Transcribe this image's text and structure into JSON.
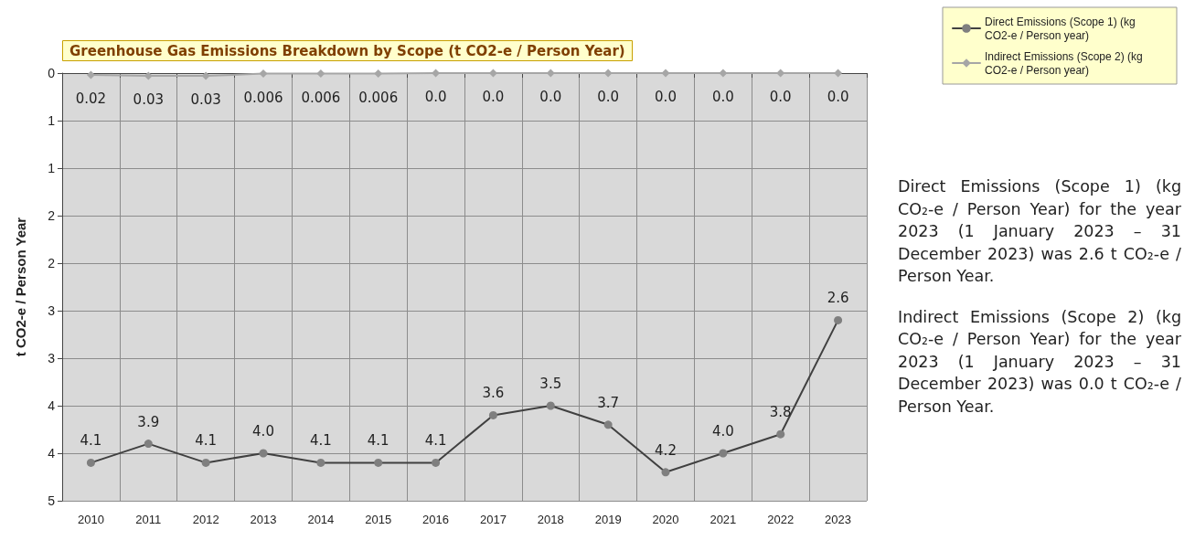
{
  "chart_data": {
    "type": "line",
    "title": "Greenhouse Gas Emissions Breakdown by Scope (t CO2-e / Person Year)",
    "ylabel": "t CO2-e / Person Year",
    "categories": [
      "2010",
      "2011",
      "2012",
      "2013",
      "2014",
      "2015",
      "2016",
      "2017",
      "2018",
      "2019",
      "2020",
      "2021",
      "2022",
      "2023"
    ],
    "series": [
      {
        "name": "Direct Emissions (Scope 1) (kg CO2-e / Person year)",
        "color": "#7f7f7f",
        "marker": "circle",
        "values": [
          4.1,
          3.9,
          4.1,
          4.0,
          4.1,
          4.1,
          4.1,
          3.6,
          3.5,
          3.7,
          4.2,
          4.0,
          3.8,
          2.6
        ],
        "value_labels": [
          "4.1",
          "3.9",
          "4.1",
          "4.0",
          "4.1",
          "4.1",
          "4.1",
          "3.6",
          "3.5",
          "3.7",
          "4.2",
          "4.0",
          "3.8",
          "2.6"
        ]
      },
      {
        "name": "Indirect Emissions (Scope 2) (kg CO2-e / Person year)",
        "color": "#a6a6a6",
        "marker": "diamond",
        "values": [
          0.02,
          0.03,
          0.03,
          0.006,
          0.006,
          0.006,
          0,
          0,
          0,
          0,
          0,
          0,
          0,
          0
        ],
        "value_labels": [
          "0.02",
          "0.03",
          "0.03",
          "0.006",
          "0.006",
          "0.006",
          "0.0",
          "0.0",
          "0.0",
          "0.0",
          "0.0",
          "0.0",
          "0.0",
          "0.0"
        ]
      }
    ],
    "ylim": [
      4.5,
      0
    ],
    "yticks": [
      0,
      {
        "value": 0.5,
        "label": "1"
      },
      {
        "value": 1,
        "label": "1"
      },
      {
        "value": 1.5,
        "label": "2"
      },
      {
        "value": 2,
        "label": "2"
      },
      {
        "value": 2.5,
        "label": "3"
      },
      {
        "value": 3,
        "label": "3"
      },
      {
        "value": 3.5,
        "label": "4"
      },
      {
        "value": 4,
        "label": "4"
      },
      {
        "value": 4.5,
        "label": "5"
      }
    ],
    "grid": true,
    "legend": "top right",
    "line_style": "solid",
    "annotations": [
      "Direct Emissions (Scope 1) (kg CO₂-e / Person Year) for the year 2023 (1 January 2023 – 31 December 2023) was 2.6 t CO₂-e / Person Year.",
      "Indirect Emissions (Scope 2) (kg CO₂-e / Person Year) for the year 2023 (1 January 2023 – 31 December 2023) was 0.0 t CO₂-e / Person Year."
    ]
  }
}
